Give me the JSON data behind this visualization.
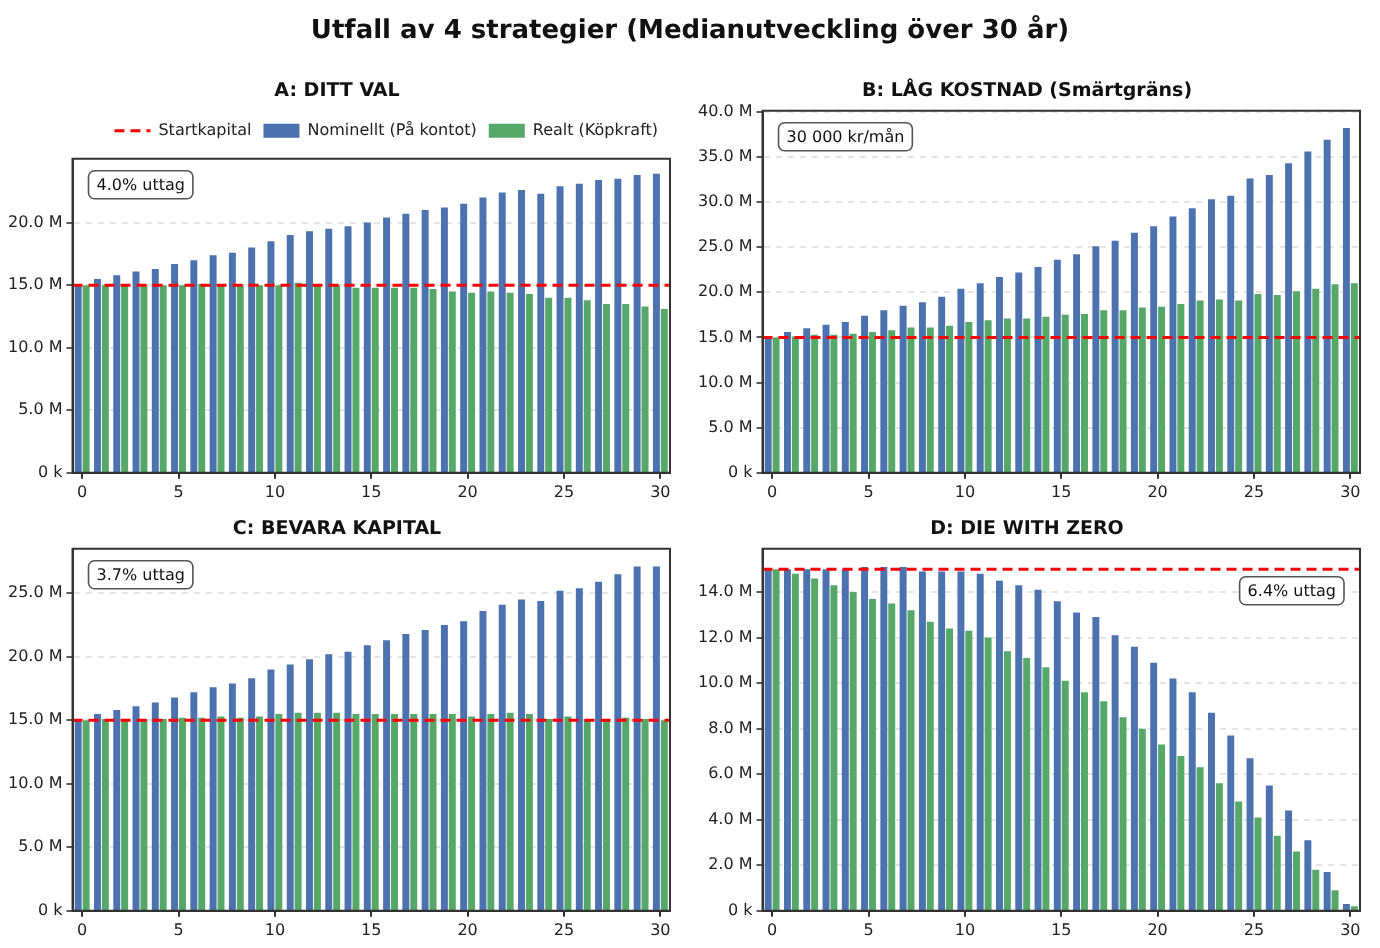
{
  "chart_data": [
    {
      "type": "bar",
      "title": "Utfall av 4 strategier (Medianutveckling över 30 år)",
      "subtitle": "A: DITT VAL",
      "categories": [
        "0",
        null,
        null,
        null,
        null,
        "5",
        null,
        null,
        null,
        null,
        "10",
        null,
        null,
        null,
        null,
        "15",
        null,
        null,
        null,
        null,
        "20",
        null,
        null,
        null,
        null,
        "25",
        null,
        null,
        null,
        null,
        "30"
      ],
      "series": [
        {
          "name": "Nominellt (På kontot)",
          "color": "#4c72b0",
          "values": [
            15.0,
            15.5,
            15.8,
            16.1,
            16.3,
            16.7,
            17.0,
            17.4,
            17.6,
            18.0,
            18.5,
            19.0,
            19.3,
            19.5,
            19.7,
            20.0,
            20.4,
            20.7,
            21.0,
            21.2,
            21.5,
            22.0,
            22.4,
            22.6,
            22.3,
            22.9,
            23.1,
            23.4,
            23.5,
            23.8,
            23.9
          ]
        },
        {
          "name": "Realt (Köpkraft)",
          "color": "#55a868",
          "values": [
            15.0,
            15.0,
            15.0,
            15.0,
            15.0,
            15.0,
            15.1,
            15.0,
            15.0,
            15.0,
            15.0,
            15.2,
            15.1,
            15.0,
            14.8,
            14.8,
            14.8,
            14.8,
            14.7,
            14.5,
            14.4,
            14.5,
            14.4,
            14.3,
            14.0,
            14.0,
            13.8,
            13.5,
            13.5,
            13.3,
            13.1
          ]
        }
      ],
      "ylim": [
        0,
        25.1
      ],
      "yticks": [
        {
          "value": 0,
          "label": "0 k"
        },
        {
          "value": 5,
          "label": "5.0 M"
        },
        {
          "value": 10,
          "label": "10.0 M"
        },
        {
          "value": 15,
          "label": "15.0 M"
        },
        {
          "value": 20,
          "label": "20.0 M"
        }
      ],
      "ref_lines": [
        {
          "axis": "y",
          "value": 15,
          "label": "Startkapital",
          "color": "#ff0000",
          "line_style": "dashed"
        }
      ],
      "annotations": [
        "4.0% uttag"
      ],
      "grid": "y",
      "legend": "top right"
    },
    {
      "type": "bar",
      "title": "B: LÅG KOSTNAD (Smärtgräns)",
      "categories": [
        "0",
        null,
        null,
        null,
        null,
        "5",
        null,
        null,
        null,
        null,
        "10",
        null,
        null,
        null,
        null,
        "15",
        null,
        null,
        null,
        null,
        "20",
        null,
        null,
        null,
        null,
        "25",
        null,
        null,
        null,
        null,
        "30"
      ],
      "series": [
        {
          "color": "#4c72b0",
          "values": [
            15.0,
            15.6,
            16.0,
            16.4,
            16.7,
            17.4,
            18.0,
            18.5,
            18.9,
            19.5,
            20.4,
            21.0,
            21.7,
            22.2,
            22.8,
            23.6,
            24.2,
            25.1,
            25.7,
            26.6,
            27.3,
            28.4,
            29.3,
            30.3,
            30.7,
            32.6,
            33.0,
            34.3,
            35.6,
            36.9,
            38.2
          ]
        },
        {
          "color": "#55a868",
          "values": [
            15.0,
            15.1,
            15.3,
            15.3,
            15.4,
            15.6,
            15.8,
            16.1,
            16.1,
            16.3,
            16.7,
            16.9,
            17.1,
            17.1,
            17.3,
            17.5,
            17.6,
            18.0,
            18.0,
            18.3,
            18.4,
            18.7,
            19.1,
            19.2,
            19.1,
            19.8,
            19.7,
            20.1,
            20.4,
            20.9,
            21.0
          ]
        }
      ],
      "ylim": [
        0,
        40.1
      ],
      "yticks": [
        {
          "value": 0,
          "label": "0 k"
        },
        {
          "value": 5,
          "label": "5.0 M"
        },
        {
          "value": 10,
          "label": "10.0 M"
        },
        {
          "value": 15,
          "label": "15.0 M"
        },
        {
          "value": 20,
          "label": "20.0 M"
        },
        {
          "value": 25,
          "label": "25.0 M"
        },
        {
          "value": 30,
          "label": "30.0 M"
        },
        {
          "value": 35,
          "label": "35.0 M"
        },
        {
          "value": 40,
          "label": "40.0 M"
        }
      ],
      "ref_lines": [
        {
          "axis": "y",
          "value": 15,
          "color": "#ff0000",
          "line_style": "dashed"
        }
      ],
      "annotations": [
        "30 000 kr/mån"
      ],
      "grid": "y"
    },
    {
      "type": "bar",
      "title": "C: BEVARA KAPITAL",
      "categories": [
        "0",
        null,
        null,
        null,
        null,
        "5",
        null,
        null,
        null,
        null,
        "10",
        null,
        null,
        null,
        null,
        "15",
        null,
        null,
        null,
        null,
        "20",
        null,
        null,
        null,
        null,
        "25",
        null,
        null,
        null,
        null,
        "30"
      ],
      "series": [
        {
          "color": "#4c72b0",
          "values": [
            15.0,
            15.5,
            15.8,
            16.1,
            16.4,
            16.8,
            17.2,
            17.6,
            17.9,
            18.3,
            19.0,
            19.4,
            19.8,
            20.2,
            20.4,
            20.9,
            21.3,
            21.8,
            22.1,
            22.5,
            22.8,
            23.6,
            24.1,
            24.5,
            24.4,
            25.2,
            25.4,
            25.9,
            26.5,
            27.1,
            27.1
          ]
        },
        {
          "color": "#55a868",
          "values": [
            15.0,
            15.1,
            15.1,
            15.1,
            15.1,
            15.2,
            15.2,
            15.3,
            15.2,
            15.3,
            15.5,
            15.6,
            15.6,
            15.6,
            15.5,
            15.5,
            15.5,
            15.5,
            15.5,
            15.5,
            15.3,
            15.5,
            15.6,
            15.5,
            15.1,
            15.3,
            15.1,
            15.1,
            15.2,
            15.1,
            15.0
          ]
        }
      ],
      "ylim": [
        0,
        28.5
      ],
      "yticks": [
        {
          "value": 0,
          "label": "0 k"
        },
        {
          "value": 5,
          "label": "5.0 M"
        },
        {
          "value": 10,
          "label": "10.0 M"
        },
        {
          "value": 15,
          "label": "15.0 M"
        },
        {
          "value": 20,
          "label": "20.0 M"
        },
        {
          "value": 25,
          "label": "25.0 M"
        }
      ],
      "ref_lines": [
        {
          "axis": "y",
          "value": 15,
          "color": "#ff0000",
          "line_style": "dashed"
        }
      ],
      "annotations": [
        "3.7% uttag"
      ],
      "grid": "y"
    },
    {
      "type": "bar",
      "title": "D: DIE WITH ZERO",
      "categories": [
        "0",
        null,
        null,
        null,
        null,
        "5",
        null,
        null,
        null,
        null,
        "10",
        null,
        null,
        null,
        null,
        "15",
        null,
        null,
        null,
        null,
        "20",
        null,
        null,
        null,
        null,
        "25",
        null,
        null,
        null,
        null,
        "30"
      ],
      "series": [
        {
          "color": "#4c72b0",
          "values": [
            15.0,
            15.0,
            15.0,
            15.0,
            15.0,
            15.1,
            15.1,
            15.1,
            14.9,
            14.9,
            14.9,
            14.8,
            14.5,
            14.3,
            14.1,
            13.6,
            13.1,
            12.9,
            12.1,
            11.6,
            10.9,
            10.2,
            9.6,
            8.7,
            7.7,
            6.7,
            5.5,
            4.4,
            3.1,
            1.7,
            0.3
          ]
        },
        {
          "color": "#55a868",
          "values": [
            15.0,
            14.8,
            14.6,
            14.3,
            14.0,
            13.7,
            13.5,
            13.2,
            12.7,
            12.4,
            12.3,
            12.0,
            11.4,
            11.1,
            10.7,
            10.1,
            9.6,
            9.2,
            8.5,
            8.0,
            7.3,
            6.8,
            6.3,
            5.6,
            4.8,
            4.1,
            3.3,
            2.6,
            1.8,
            0.9,
            0.2
          ]
        }
      ],
      "ylim": [
        0,
        15.9
      ],
      "yticks": [
        {
          "value": 0,
          "label": "0 k"
        },
        {
          "value": 2,
          "label": "2.0 M"
        },
        {
          "value": 4,
          "label": "4.0 M"
        },
        {
          "value": 6,
          "label": "6.0 M"
        },
        {
          "value": 8,
          "label": "8.0 M"
        },
        {
          "value": 10,
          "label": "10.0 M"
        },
        {
          "value": 12,
          "label": "12.0 M"
        },
        {
          "value": 14,
          "label": "14.0 M"
        }
      ],
      "ref_lines": [
        {
          "axis": "y",
          "value": 15,
          "color": "#ff0000",
          "line_style": "dashed"
        }
      ],
      "annotations": [
        "6.4% uttag"
      ],
      "grid": "y"
    }
  ]
}
